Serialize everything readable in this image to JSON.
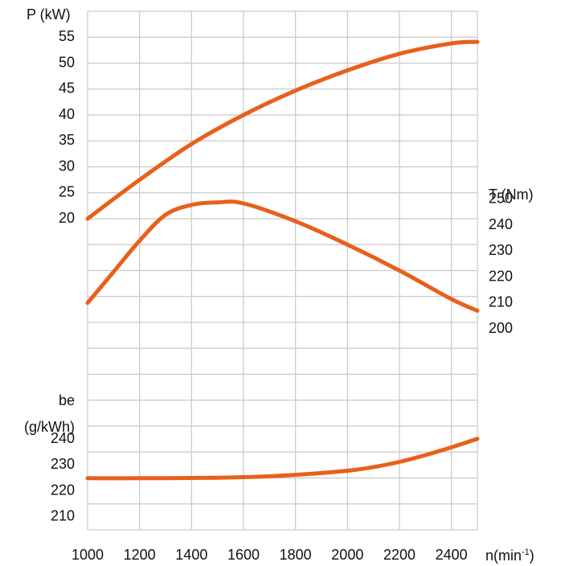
{
  "chart_data": {
    "type": "line",
    "x_axis": {
      "label_base": "n(min",
      "label_sup": "-1",
      "label_close": ")",
      "ticks": [
        1000,
        1200,
        1400,
        1600,
        1800,
        2000,
        2200,
        2400
      ],
      "range": [
        1000,
        2500
      ]
    },
    "power_axis": {
      "label": "P (kW)",
      "ticks": [
        20,
        25,
        30,
        35,
        40,
        45,
        50,
        55
      ],
      "range": [
        20,
        60
      ]
    },
    "torque_axis": {
      "label": "T (Nm)",
      "ticks": [
        200,
        210,
        220,
        230,
        240,
        250
      ],
      "range": [
        190,
        260
      ]
    },
    "consumption_axis": {
      "label_line1": "be",
      "label_line2": "(g/kWh)",
      "ticks": [
        210,
        220,
        230,
        240
      ],
      "range": [
        205,
        250
      ]
    },
    "grid": true,
    "series": [
      {
        "key": "power",
        "axis": "power_axis",
        "color": "#e8601c",
        "points": [
          [
            1000,
            20
          ],
          [
            1200,
            27.5
          ],
          [
            1400,
            34.4
          ],
          [
            1600,
            40
          ],
          [
            1800,
            44.7
          ],
          [
            2000,
            48.6
          ],
          [
            2200,
            51.8
          ],
          [
            2400,
            53.8
          ],
          [
            2500,
            54.1
          ]
        ]
      },
      {
        "key": "torque",
        "axis": "torque_axis",
        "color": "#e8601c",
        "points": [
          [
            1000,
            210
          ],
          [
            1100,
            222
          ],
          [
            1200,
            234
          ],
          [
            1300,
            244
          ],
          [
            1400,
            247.8
          ],
          [
            1500,
            248.8
          ],
          [
            1600,
            248.4
          ],
          [
            1800,
            241.5
          ],
          [
            2000,
            232.5
          ],
          [
            2200,
            222.5
          ],
          [
            2400,
            211.5
          ],
          [
            2500,
            207
          ]
        ]
      },
      {
        "key": "consumption",
        "axis": "consumption_axis",
        "color": "#e8601c",
        "points": [
          [
            1000,
            224.9
          ],
          [
            1200,
            224.9
          ],
          [
            1400,
            225
          ],
          [
            1600,
            225.3
          ],
          [
            1800,
            226.2
          ],
          [
            2000,
            227.8
          ],
          [
            2100,
            229.2
          ],
          [
            2200,
            231.2
          ],
          [
            2300,
            233.8
          ],
          [
            2400,
            236.8
          ],
          [
            2500,
            240.1
          ]
        ]
      }
    ]
  }
}
